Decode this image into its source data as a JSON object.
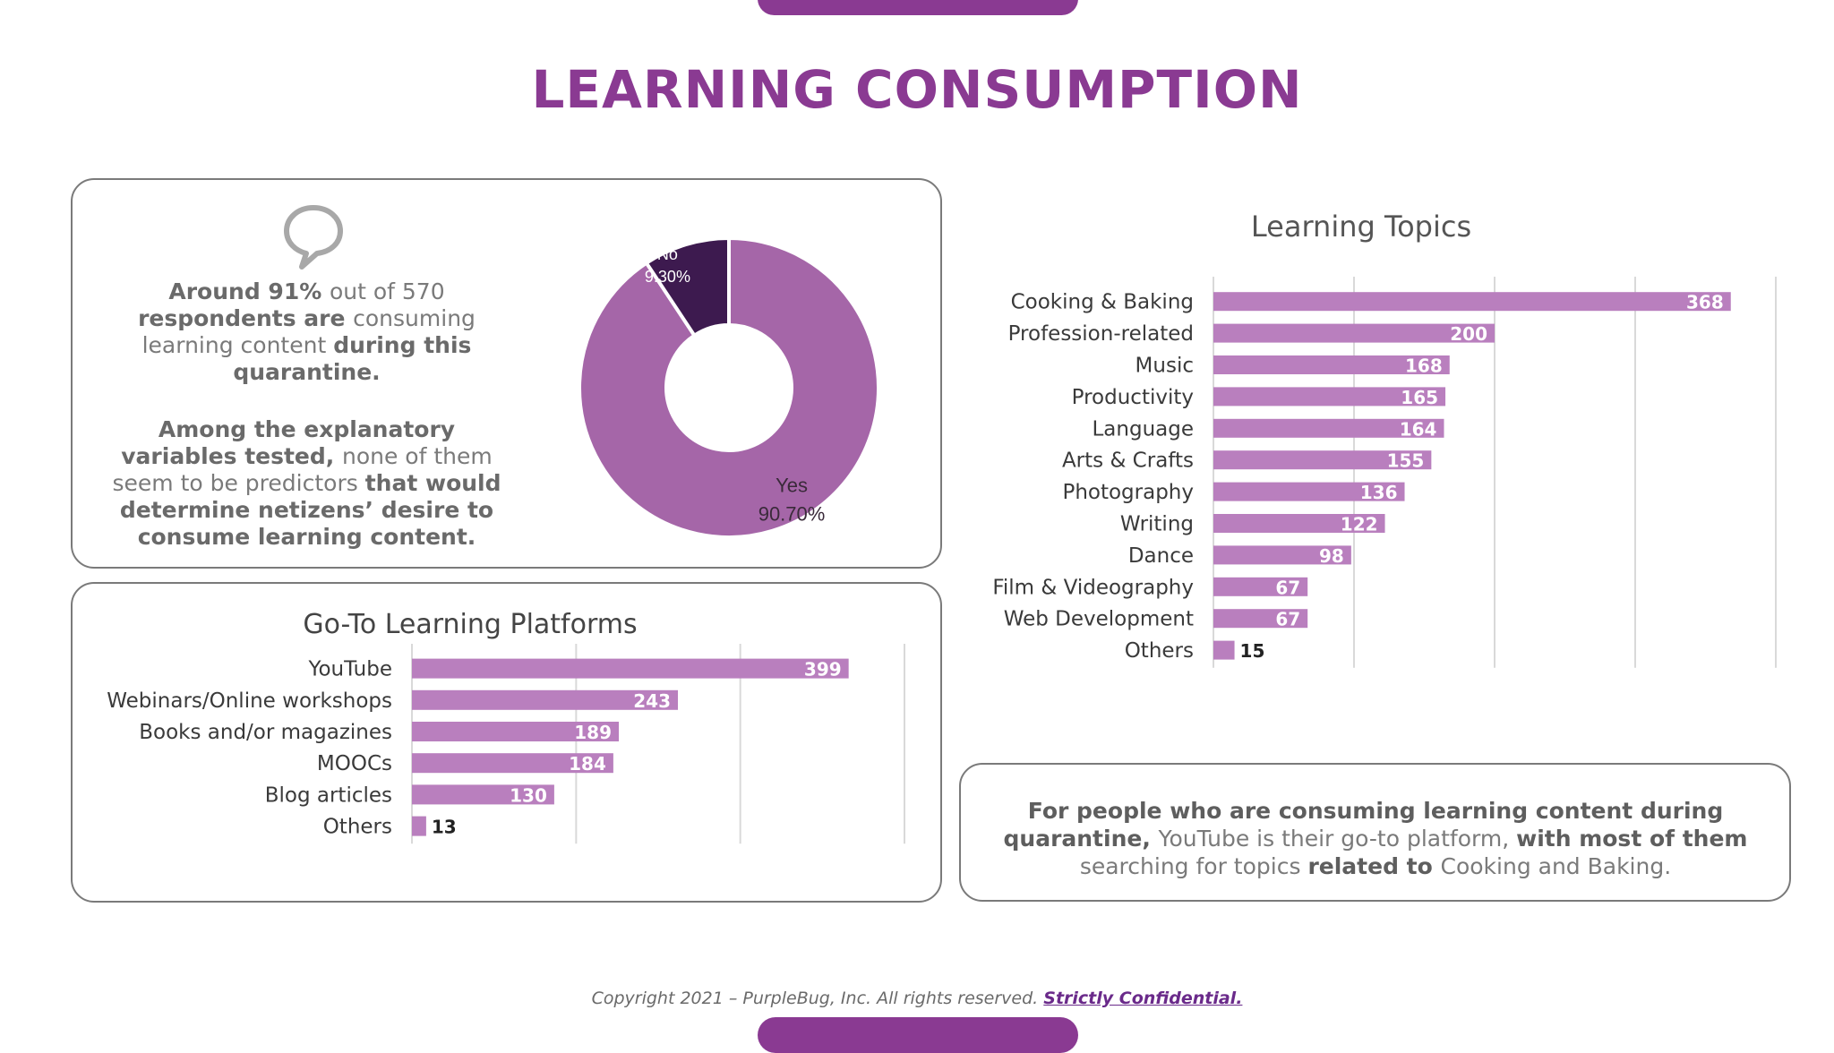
{
  "page": {
    "title": "LEARNING CONSUMPTION",
    "footer_text": "Copyright 2021 – PurpleBug, Inc. All rights reserved.",
    "footer_link": "Strictly Confidential."
  },
  "survey_panel": {
    "icon": "speech-bubble-icon",
    "text1": [
      {
        "t": "Around 91% ",
        "b": true
      },
      {
        "t": "out of 570 ",
        "b": false
      },
      {
        "t": "respondents are ",
        "b": true
      },
      {
        "t": "consuming learning content ",
        "b": false
      },
      {
        "t": "during this quarantine.",
        "b": true
      }
    ],
    "text2": [
      {
        "t": "Among the explanatory variables tested, ",
        "b": true
      },
      {
        "t": "none of them seem to be predictors ",
        "b": false
      },
      {
        "t": "that would determine netizens’ desire to consume learning content.",
        "b": true
      }
    ]
  },
  "summary_panel": {
    "text": [
      {
        "t": "For people who are consuming learning content during quarantine, ",
        "b": true
      },
      {
        "t": "YouTube is their go-to platform, ",
        "b": false
      },
      {
        "t": "with most of them ",
        "b": true
      },
      {
        "t": "searching for topics ",
        "b": false
      },
      {
        "t": "related to ",
        "b": true
      },
      {
        "t": "Cooking and Baking.",
        "b": false
      }
    ]
  },
  "colors": {
    "accent": "#8a3a92",
    "bar": "#b97fbe",
    "donut_yes": "#a566a8",
    "donut_no": "#3d1a4f",
    "grid": "#d9d9d9"
  },
  "chart_data": [
    {
      "type": "pie",
      "donut": true,
      "title": "",
      "slices": [
        {
          "label": "Yes",
          "value": 90.7,
          "value_label": "90.70%",
          "color": "#a566a8"
        },
        {
          "label": "No",
          "value": 9.3,
          "value_label": "9.30%",
          "color": "#3d1a4f"
        }
      ]
    },
    {
      "type": "bar",
      "orientation": "horizontal",
      "title": "Learning Topics",
      "categories": [
        "Cooking & Baking",
        "Profession-related",
        "Music",
        "Productivity",
        "Language",
        "Arts & Crafts",
        "Photography",
        "Writing",
        "Dance",
        "Film & Videography",
        "Web Development",
        "Others"
      ],
      "values": [
        368,
        200,
        168,
        165,
        164,
        155,
        136,
        122,
        98,
        67,
        67,
        15
      ],
      "xlim": [
        0,
        400
      ],
      "grid": true
    },
    {
      "type": "bar",
      "orientation": "horizontal",
      "title": "Go-To Learning Platforms",
      "categories": [
        "YouTube",
        "Webinars/Online workshops",
        "Books and/or magazines",
        "MOOCs",
        "Blog articles",
        "Others"
      ],
      "values": [
        399,
        243,
        189,
        184,
        130,
        13
      ],
      "xlim": [
        0,
        450
      ],
      "grid": true
    }
  ]
}
